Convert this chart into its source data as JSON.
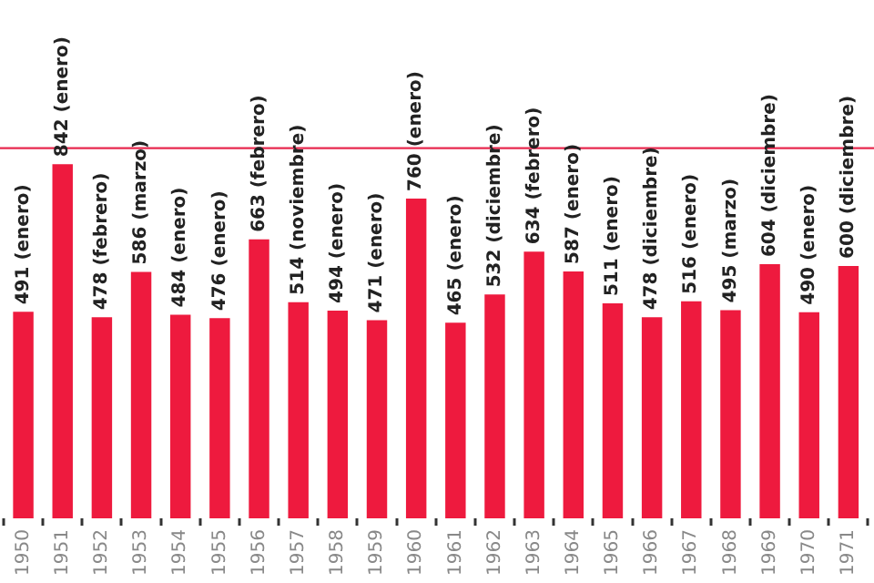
{
  "chart_data": {
    "type": "bar",
    "categories": [
      "1950",
      "1951",
      "1952",
      "1953",
      "1954",
      "1955",
      "1956",
      "1957",
      "1958",
      "1959",
      "1960",
      "1961",
      "1962",
      "1963",
      "1964",
      "1965",
      "1966",
      "1967",
      "1968",
      "1969",
      "1970",
      "1971"
    ],
    "values": [
      491,
      842,
      478,
      586,
      484,
      476,
      663,
      514,
      494,
      471,
      760,
      465,
      532,
      634,
      587,
      511,
      478,
      516,
      495,
      604,
      490,
      600
    ],
    "value_labels": [
      "491 (enero)",
      "842 (enero)",
      "478 (febrero)",
      "586 (marzo)",
      "484 (enero)",
      "476 (enero)",
      "663 (febrero)",
      "514 (noviembre)",
      "494 (enero)",
      "471 (enero)",
      "760 (enero)",
      "465 (enero)",
      "532 (diciembre)",
      "634 (febrero)",
      "587 (enero)",
      "511 (enero)",
      "478 (diciembre)",
      "516 (enero)",
      "495 (marzo)",
      "604 (diciembre)",
      "490 (enero)",
      "600 (diciembre)"
    ],
    "color": "#ee1a3e",
    "ref_lines": [
      {
        "axis": "y",
        "value": 880,
        "color": "#e8294f"
      }
    ],
    "grid": false,
    "legend": false
  }
}
